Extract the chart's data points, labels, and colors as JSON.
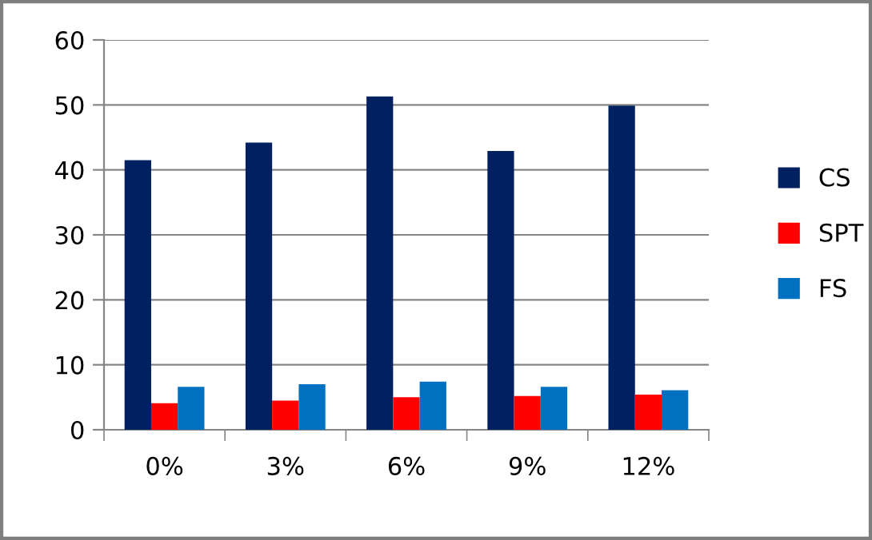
{
  "chart_data": {
    "type": "bar",
    "categories": [
      "0%",
      "3%",
      "6%",
      "9%",
      "12%"
    ],
    "series": [
      {
        "name": "CS",
        "color": "#002060",
        "values": [
          41.5,
          44.2,
          51.3,
          42.9,
          49.9
        ]
      },
      {
        "name": "SPT",
        "color": "#ff0000",
        "values": [
          4.1,
          4.5,
          5.0,
          5.2,
          5.4
        ]
      },
      {
        "name": "FS",
        "color": "#0070c0",
        "values": [
          6.6,
          7.0,
          7.4,
          6.6,
          6.1
        ]
      }
    ],
    "ylim": [
      0,
      60
    ],
    "yticks": [
      0,
      10,
      20,
      30,
      40,
      50,
      60
    ],
    "grid": "y",
    "legend": "right"
  }
}
